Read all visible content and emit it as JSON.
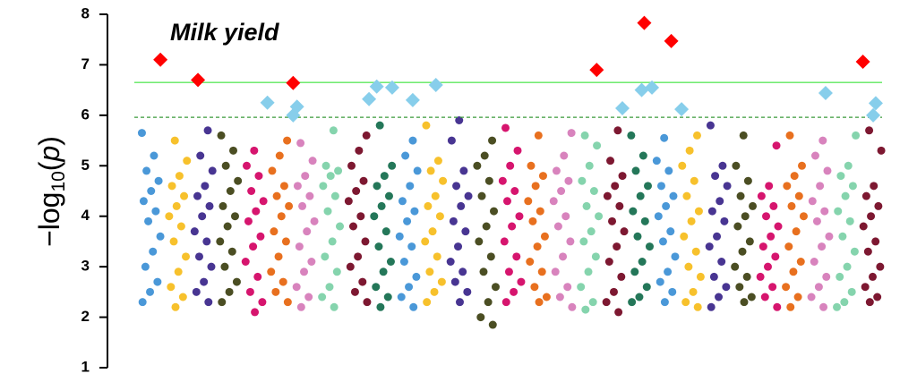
{
  "chart_data": {
    "type": "manhattan",
    "title": "Milk yield",
    "y_label_parts": [
      "−log",
      "10",
      "(",
      "p",
      ")"
    ],
    "ylim": [
      1,
      8
    ],
    "yticks": [
      1,
      2,
      3,
      4,
      5,
      6,
      7,
      8
    ],
    "xlim": [
      0,
      29
    ],
    "thresholds": [
      {
        "value": 6.65,
        "color": "#5ee85e",
        "style": "solid"
      },
      {
        "value": 5.96,
        "color": "#3a9a3a",
        "style": "dashed"
      }
    ],
    "chromosomes": [
      {
        "color": "#4a98d8",
        "values": [
          5.65,
          5.2,
          4.9,
          4.7,
          4.5,
          4.3,
          4.1,
          3.9,
          3.6,
          3.3,
          3.0,
          2.7,
          2.5,
          2.3
        ]
      },
      {
        "color": "#f7c12c",
        "values": [
          5.5,
          5.1,
          4.8,
          4.6,
          4.4,
          4.2,
          4.0,
          3.8,
          3.5,
          3.2,
          2.9,
          2.6,
          2.4,
          2.2
        ]
      },
      {
        "color": "#483592",
        "values": [
          5.7,
          5.2,
          4.9,
          4.6,
          4.4,
          4.2,
          4.0,
          3.7,
          3.5,
          3.2,
          3.0,
          2.7,
          2.5,
          2.3
        ]
      },
      {
        "color": "#4b4e23",
        "values": [
          5.6,
          5.3,
          5.0,
          4.7,
          4.5,
          4.2,
          4.0,
          3.8,
          3.5,
          3.3,
          3.0,
          2.7,
          2.5,
          2.3
        ]
      },
      {
        "color": "#d6156e",
        "values": [
          5.3,
          5.0,
          4.8,
          4.5,
          4.3,
          4.1,
          3.9,
          3.6,
          3.4,
          3.1,
          2.8,
          2.5,
          2.3,
          2.1
        ]
      },
      {
        "color": "#e8701f",
        "values": [
          5.5,
          5.2,
          4.9,
          4.6,
          4.4,
          4.2,
          4.0,
          3.7,
          3.5,
          3.2,
          2.9,
          2.7,
          2.5,
          2.3
        ]
      },
      {
        "color": "#d883bd",
        "values": [
          5.45,
          5.1,
          4.8,
          4.6,
          4.4,
          4.2,
          3.9,
          3.7,
          3.4,
          3.1,
          2.9,
          2.6,
          2.4,
          2.2
        ]
      },
      {
        "color": "#85d4ad",
        "values": [
          5.7,
          5.0,
          4.9,
          4.8,
          4.6,
          4.4,
          4.1,
          3.8,
          3.5,
          3.2,
          2.9,
          2.6,
          2.4,
          2.2
        ]
      },
      {
        "color": "#7d1831",
        "values": [
          5.6,
          5.3,
          5.0,
          4.7,
          4.5,
          4.3,
          4.0,
          3.8,
          3.5,
          3.2,
          3.0,
          2.7,
          2.5,
          2.3
        ]
      },
      {
        "color": "#247759",
        "values": [
          5.8,
          5.0,
          4.8,
          4.6,
          4.4,
          4.2,
          4.0,
          3.7,
          3.4,
          3.1,
          2.9,
          2.6,
          2.4,
          2.2
        ]
      },
      {
        "color": "#4a98d8",
        "values": [
          5.5,
          5.2,
          4.9,
          4.6,
          4.3,
          4.1,
          3.9,
          3.6,
          3.4,
          3.1,
          2.8,
          2.6,
          2.4,
          2.2
        ]
      },
      {
        "color": "#f7c12c",
        "values": [
          5.8,
          5.1,
          4.9,
          4.7,
          4.4,
          4.2,
          4.0,
          3.7,
          3.5,
          3.2,
          2.9,
          2.7,
          2.5,
          2.3
        ]
      },
      {
        "color": "#483592",
        "values": [
          5.9,
          5.5,
          4.9,
          4.6,
          4.4,
          4.2,
          3.9,
          3.7,
          3.4,
          3.1,
          2.9,
          2.7,
          2.5,
          2.3
        ]
      },
      {
        "color": "#4b4e23",
        "values": [
          5.5,
          5.2,
          5.0,
          4.7,
          4.4,
          4.1,
          3.8,
          3.5,
          3.2,
          2.9,
          2.6,
          2.3,
          2.0,
          1.85
        ]
      },
      {
        "color": "#d6156e",
        "values": [
          5.75,
          5.3,
          5.0,
          4.7,
          4.5,
          4.3,
          4.0,
          3.8,
          3.5,
          3.2,
          2.9,
          2.7,
          2.5,
          2.3
        ]
      },
      {
        "color": "#e8701f",
        "values": [
          5.6,
          5.0,
          4.8,
          4.6,
          4.3,
          4.1,
          3.9,
          3.6,
          3.4,
          3.1,
          2.9,
          2.6,
          2.4,
          2.3
        ]
      },
      {
        "color": "#d883bd",
        "values": [
          5.65,
          5.2,
          4.9,
          4.7,
          4.5,
          4.3,
          4.0,
          3.8,
          3.5,
          3.2,
          2.9,
          2.6,
          2.4,
          2.2
        ]
      },
      {
        "color": "#85d4ad",
        "values": [
          5.6,
          5.4,
          5.0,
          4.7,
          4.5,
          4.2,
          4.0,
          3.7,
          3.5,
          3.2,
          2.9,
          2.6,
          2.3,
          2.15
        ]
      },
      {
        "color": "#7d1831",
        "values": [
          5.7,
          5.1,
          4.8,
          4.6,
          4.4,
          4.2,
          3.9,
          3.7,
          3.4,
          3.1,
          2.8,
          2.5,
          2.3,
          2.1
        ]
      },
      {
        "color": "#247759",
        "values": [
          5.6,
          5.2,
          4.9,
          4.6,
          4.4,
          4.1,
          3.9,
          3.6,
          3.4,
          3.1,
          2.9,
          2.6,
          2.4,
          2.3
        ]
      },
      {
        "color": "#4a98d8",
        "values": [
          5.55,
          5.1,
          4.9,
          4.6,
          4.4,
          4.2,
          4.0,
          3.7,
          3.5,
          3.2,
          2.9,
          2.7,
          2.5,
          2.3
        ]
      },
      {
        "color": "#f7c12c",
        "values": [
          5.6,
          5.3,
          5.0,
          4.7,
          4.4,
          4.1,
          3.9,
          3.6,
          3.3,
          3.0,
          2.8,
          2.5,
          2.3,
          2.2
        ]
      },
      {
        "color": "#483592",
        "values": [
          5.8,
          5.0,
          4.8,
          4.6,
          4.3,
          4.1,
          3.9,
          3.6,
          3.4,
          3.1,
          2.8,
          2.6,
          2.4,
          2.2
        ]
      },
      {
        "color": "#4b4e23",
        "values": [
          5.6,
          5.0,
          4.7,
          4.4,
          4.2,
          4.0,
          3.8,
          3.5,
          3.3,
          3.0,
          2.8,
          2.6,
          2.4,
          2.3
        ]
      },
      {
        "color": "#d6156e",
        "values": [
          5.4,
          4.6,
          4.4,
          4.2,
          4.0,
          3.8,
          3.6,
          3.4,
          3.2,
          3.0,
          2.8,
          2.6,
          2.4,
          2.2
        ]
      },
      {
        "color": "#e8701f",
        "values": [
          5.6,
          5.0,
          4.8,
          4.6,
          4.4,
          4.2,
          4.0,
          3.7,
          3.4,
          3.1,
          2.9,
          2.6,
          2.4,
          2.2
        ]
      },
      {
        "color": "#d883bd",
        "values": [
          5.5,
          5.2,
          4.9,
          4.6,
          4.3,
          4.1,
          3.9,
          3.6,
          3.4,
          3.1,
          2.8,
          2.6,
          2.4,
          2.2
        ]
      },
      {
        "color": "#85d4ad",
        "values": [
          5.6,
          5.0,
          4.8,
          4.6,
          4.4,
          4.1,
          3.9,
          3.6,
          3.3,
          3.0,
          2.8,
          2.5,
          2.3,
          2.2
        ]
      },
      {
        "color": "#7d1831",
        "values": [
          5.7,
          5.3,
          4.6,
          4.4,
          4.2,
          4.0,
          3.8,
          3.5,
          3.3,
          3.0,
          2.8,
          2.6,
          2.4,
          2.3
        ]
      }
    ],
    "highlights": [
      {
        "color": "#ff0000",
        "marker": "diamond",
        "x": [
          0.84,
          2.3,
          6.0,
          17.8,
          19.65,
          20.7,
          28.15
        ],
        "values": [
          7.1,
          6.7,
          6.64,
          6.9,
          7.83,
          7.47,
          7.06
        ]
      },
      {
        "color": "#87ceeb",
        "marker": "diamond",
        "x": [
          5.0,
          6.0,
          6.15,
          8.95,
          9.25,
          9.85,
          10.65,
          11.55,
          18.8,
          19.55,
          19.95,
          21.1,
          26.7,
          28.65,
          28.55
        ],
        "values": [
          6.25,
          6.0,
          6.17,
          6.32,
          6.57,
          6.55,
          6.3,
          6.6,
          6.14,
          6.5,
          6.55,
          6.12,
          6.44,
          6.24,
          6.0
        ]
      }
    ]
  }
}
